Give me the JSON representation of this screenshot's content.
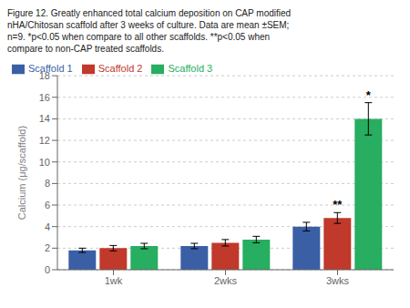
{
  "chart_data": {
    "type": "bar",
    "title": "Figure 12. Greatly enhanced total calcium deposition on CAP modified\nnHA/Chitosan scaffold after 3 weeks of culture. Data are mean ±SEM;\nn=9. *p<0.05 when compare to all other scaffolds. **p<0.05 when\ncompare to non-CAP treated scaffolds.",
    "categories": [
      "1wk",
      "2wks",
      "3wks"
    ],
    "series": [
      {
        "name": "Scaffold 1",
        "color": "#3a5fa5",
        "values": [
          1.8,
          2.2,
          4.0
        ],
        "error": [
          0.2,
          0.25,
          0.4
        ]
      },
      {
        "name": "Scaffold 2",
        "color": "#c0392b",
        "values": [
          2.0,
          2.5,
          4.8
        ],
        "error": [
          0.25,
          0.3,
          0.5
        ]
      },
      {
        "name": "Scaffold 3",
        "color": "#27ae60",
        "values": [
          2.2,
          2.8,
          14.0
        ],
        "error": [
          0.25,
          0.3,
          1.5
        ]
      }
    ],
    "ylabel": "Calcium (μg/scaffold)",
    "ylim": [
      0,
      18
    ],
    "yticks": [
      0,
      2,
      4,
      6,
      8,
      10,
      12,
      14,
      16,
      18
    ],
    "grid": true,
    "legend": "upper left",
    "annotations": [
      {
        "text": "*",
        "category": "3wks",
        "series": "Scaffold 3"
      },
      {
        "text": "**",
        "category": "3wks",
        "series": "Scaffold 2"
      }
    ]
  }
}
